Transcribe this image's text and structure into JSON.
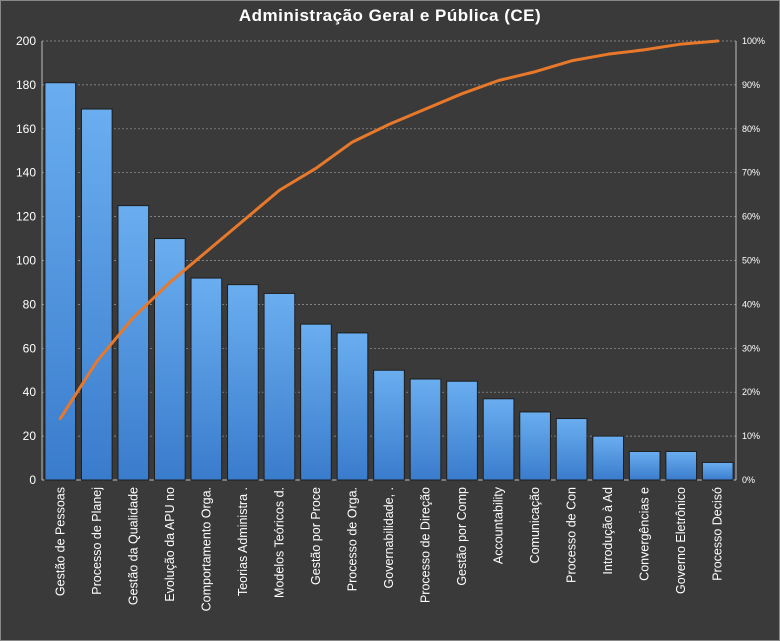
{
  "chart_data": {
    "type": "bar",
    "title": "Administração Geral e Pública (CE)",
    "categories": [
      "Gestão de Pessoas",
      "Processo de Planej",
      "Gestão da Qualidade",
      "Evolução da APU no",
      "Comportamento Orga.",
      "Teorias Administra .",
      "Modelos Teóricos d.",
      "Gestão por Proce",
      "Processo de Orga.",
      "Governabilidade, .",
      "Processo de Direção",
      "Gestão por Comp",
      "Accountability",
      "Comunicação",
      "Processo de Con",
      "Introdução à Ad",
      "Convergências e",
      "Governo Eletrônico",
      "Processo Decisó"
    ],
    "values": [
      181,
      169,
      125,
      110,
      92,
      89,
      85,
      71,
      67,
      50,
      46,
      45,
      37,
      31,
      28,
      20,
      13,
      13,
      8
    ],
    "cumulative_percent": [
      14,
      27,
      37,
      45,
      52,
      59,
      66,
      71,
      77,
      81,
      84.5,
      88,
      91,
      93,
      95.5,
      97,
      98,
      99.3,
      100
    ],
    "ylim": [
      0,
      200
    ],
    "yticks": [
      "0",
      "20",
      "40",
      "60",
      "80",
      "100",
      "120",
      "140",
      "160",
      "180",
      "200"
    ],
    "y2lim": [
      0,
      100
    ],
    "y2ticks": [
      "0%",
      "10%",
      "20%",
      "30%",
      "40%",
      "50%",
      "60%",
      "70%",
      "80%",
      "90%",
      "100%"
    ],
    "grid": true,
    "colors": {
      "bar": "#4a8fd8",
      "line": "#e8782a",
      "background": "#3a3a3a",
      "text": "#ffffff"
    }
  }
}
